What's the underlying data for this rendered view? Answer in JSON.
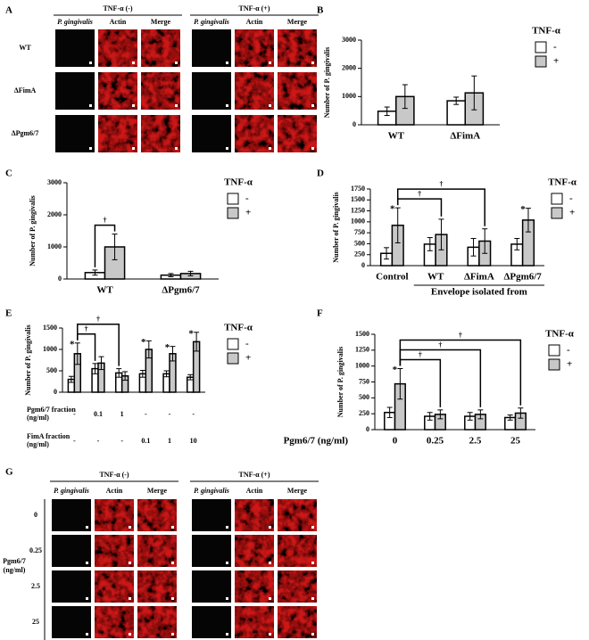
{
  "chart_data": [
    {
      "type": "bar",
      "panel": "B",
      "ylabel": "Number of P. gingivalis",
      "legend_title": "TNF-α",
      "categories": [
        "WT",
        "ΔFimA"
      ],
      "series": [
        {
          "name": "-",
          "color": "#ffffff",
          "values": [
            480,
            850
          ],
          "errors": [
            150,
            130
          ]
        },
        {
          "name": "+",
          "color": "#c8c8c8",
          "values": [
            1000,
            1130
          ],
          "errors": [
            420,
            600
          ]
        }
      ],
      "ylim": [
        0,
        3000
      ],
      "yticks": [
        0,
        1000,
        2000,
        3000
      ]
    },
    {
      "type": "bar",
      "panel": "C",
      "ylabel": "Number of P. gingivalis",
      "legend_title": "TNF-α",
      "categories": [
        "WT",
        "ΔPgm6/7"
      ],
      "series": [
        {
          "name": "-",
          "color": "#ffffff",
          "values": [
            200,
            120
          ],
          "errors": [
            80,
            50
          ]
        },
        {
          "name": "+",
          "color": "#c8c8c8",
          "values": [
            1000,
            170
          ],
          "errors": [
            400,
            70
          ]
        }
      ],
      "brackets": [
        "†"
      ],
      "ylim": [
        0,
        3000
      ],
      "yticks": [
        0,
        1000,
        2000,
        3000
      ]
    },
    {
      "type": "bar",
      "panel": "D",
      "ylabel": "Number of P. gingivalis",
      "legend_title": "TNF-α",
      "categories": [
        "Control",
        "WT",
        "ΔFimA",
        "ΔPgm6/7"
      ],
      "group_label": "Envelope isolated from",
      "series": [
        {
          "name": "-",
          "color": "#ffffff",
          "values": [
            280,
            490,
            420,
            490
          ],
          "errors": [
            130,
            150,
            200,
            130
          ]
        },
        {
          "name": "+",
          "color": "#c8c8c8",
          "values": [
            920,
            710,
            560,
            1040
          ],
          "errors": [
            400,
            350,
            280,
            270
          ],
          "markers": [
            "*",
            null,
            null,
            "*"
          ]
        }
      ],
      "brackets": [
        "†",
        "†"
      ],
      "ylim": [
        0,
        1750
      ],
      "yticks": [
        0,
        250,
        500,
        750,
        1000,
        1250,
        1500,
        1750
      ]
    },
    {
      "type": "bar",
      "panel": "E",
      "ylabel": "Number of P. gingivalis",
      "legend_title": "TNF-α",
      "categories": [
        null,
        null,
        null,
        null,
        null,
        null
      ],
      "conditions": [
        {
          "label": [
            "Pgm6/7 fraction",
            "(ng/ml)"
          ],
          "values": [
            "-",
            "0.1",
            "1",
            "-",
            "-",
            "-"
          ]
        },
        {
          "label": [
            "FimA fraction",
            "(ng/ml)"
          ],
          "values": [
            "-",
            "-",
            "-",
            "0.1",
            "1",
            "10"
          ]
        }
      ],
      "series": [
        {
          "name": "-",
          "color": "#ffffff",
          "values": [
            300,
            550,
            450,
            430,
            430,
            350
          ],
          "errors": [
            70,
            120,
            100,
            80,
            70,
            60
          ]
        },
        {
          "name": "+",
          "color": "#c8c8c8",
          "values": [
            900,
            680,
            380,
            1000,
            900,
            1180
          ],
          "errors": [
            250,
            150,
            100,
            200,
            170,
            220
          ],
          "markers": [
            "*",
            null,
            null,
            "*",
            "*",
            "*"
          ]
        }
      ],
      "brackets": [
        "†",
        "†"
      ],
      "ylim": [
        0,
        1500
      ],
      "yticks": [
        0,
        500,
        1000,
        1500
      ]
    },
    {
      "type": "bar",
      "panel": "F",
      "ylabel": "Number of P. gingivalis",
      "legend_title": "TNF-α",
      "categories": [
        "0",
        "0.25",
        "2.5",
        "25"
      ],
      "xlabel": "Pgm6/7 (ng/ml)",
      "series": [
        {
          "name": "-",
          "color": "#ffffff",
          "values": [
            270,
            210,
            210,
            190
          ],
          "errors": [
            80,
            60,
            60,
            40
          ]
        },
        {
          "name": "+",
          "color": "#c8c8c8",
          "values": [
            720,
            240,
            240,
            260
          ],
          "errors": [
            240,
            70,
            70,
            80
          ],
          "markers": [
            "*",
            null,
            null,
            null
          ]
        }
      ],
      "brackets": [
        "†",
        "†",
        "†"
      ],
      "ylim": [
        0,
        1500
      ],
      "yticks": [
        0,
        250,
        500,
        750,
        1000,
        1250,
        1500
      ]
    }
  ],
  "image_panels": [
    {
      "panel": "A",
      "groups": [
        "TNF-α (-)",
        "TNF-α (+)"
      ],
      "columns": [
        "P. gingivalis",
        "Actin",
        "Merge"
      ],
      "rows": [
        "WT",
        "ΔFimA",
        "ΔPgm6/7"
      ]
    },
    {
      "panel": "G",
      "groups": [
        "TNF-α (-)",
        "TNF-α (+)"
      ],
      "columns": [
        "P. gingivalis",
        "Actin",
        "Merge"
      ],
      "rows": [
        "0",
        "0.25",
        "2.5",
        "25"
      ],
      "row_title": [
        "Pgm6/7",
        "(ng/ml)"
      ]
    }
  ]
}
